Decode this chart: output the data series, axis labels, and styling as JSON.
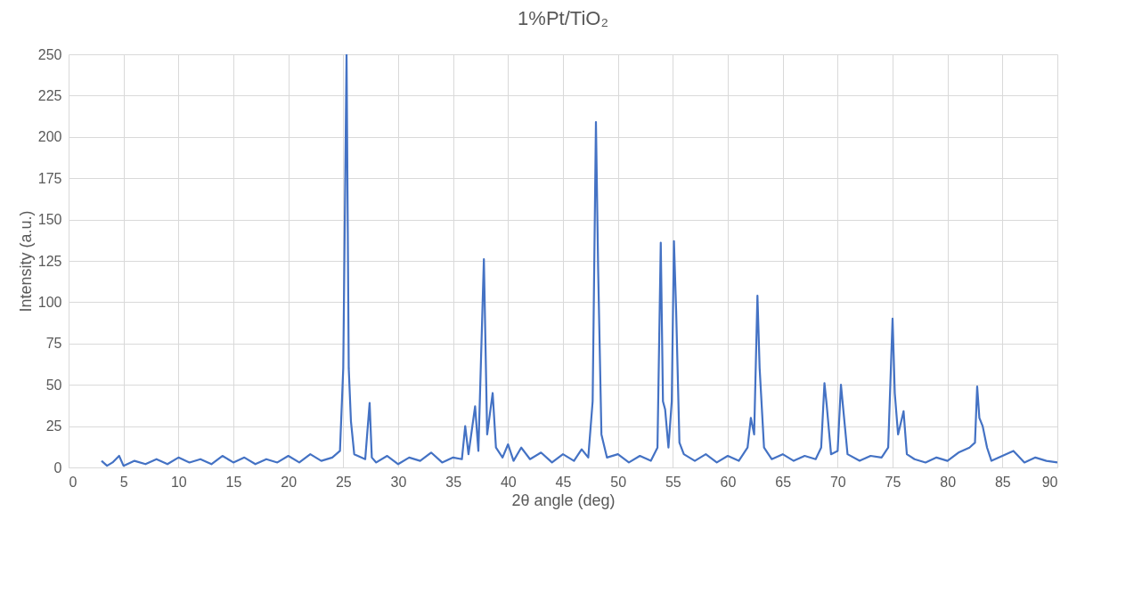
{
  "chart_data": {
    "type": "line",
    "title": "1%Pt/TiO₂",
    "xlabel": "2θ angle (deg)",
    "ylabel": "Intensity (a.u.)",
    "x": [
      3,
      3.5,
      4,
      4.6,
      5,
      6,
      7,
      8,
      9,
      10,
      11,
      12,
      13,
      14,
      15,
      16,
      17,
      18,
      19,
      20,
      21,
      22,
      23,
      24,
      24.7,
      25.0,
      25.3,
      25.5,
      25.7,
      26,
      27,
      27.4,
      27.6,
      28,
      29,
      30,
      31,
      32,
      33,
      34,
      35,
      35.8,
      36.1,
      36.4,
      37.0,
      37.3,
      37.8,
      38.1,
      38.6,
      38.9,
      39.5,
      40,
      40.5,
      41.2,
      42,
      43,
      44,
      45,
      46,
      46.7,
      47.3,
      47.7,
      48.0,
      48.2,
      48.5,
      49,
      50,
      51,
      52,
      53,
      53.6,
      53.9,
      54.1,
      54.3,
      54.6,
      54.9,
      55.1,
      55.3,
      55.6,
      56,
      57,
      58,
      59,
      60,
      61,
      61.8,
      62.1,
      62.4,
      62.7,
      62.9,
      63.3,
      64,
      65,
      66,
      67,
      68,
      68.5,
      68.8,
      69.0,
      69.4,
      70.0,
      70.3,
      70.5,
      70.9,
      72,
      73,
      74,
      74.6,
      75.0,
      75.2,
      75.5,
      76.0,
      76.3,
      77,
      78,
      79,
      80,
      81,
      82,
      82.5,
      82.7,
      82.9,
      83.2,
      83.6,
      84,
      85,
      86,
      87,
      88,
      89,
      90
    ],
    "values": [
      4,
      1,
      3,
      7,
      1,
      4,
      2,
      5,
      2,
      6,
      3,
      5,
      2,
      7,
      3,
      6,
      2,
      5,
      3,
      7,
      3,
      8,
      4,
      6,
      10,
      60,
      250,
      60,
      28,
      8,
      5,
      39,
      6,
      3,
      7,
      2,
      6,
      4,
      9,
      3,
      6,
      5,
      25,
      8,
      37,
      10,
      126,
      20,
      45,
      12,
      6,
      14,
      4,
      12,
      5,
      9,
      3,
      8,
      4,
      11,
      6,
      40,
      209,
      120,
      20,
      6,
      8,
      3,
      7,
      4,
      12,
      136,
      40,
      35,
      12,
      40,
      137,
      95,
      15,
      8,
      4,
      8,
      3,
      7,
      4,
      12,
      30,
      20,
      104,
      60,
      12,
      5,
      8,
      4,
      7,
      5,
      12,
      51,
      38,
      8,
      10,
      50,
      36,
      8,
      4,
      7,
      6,
      12,
      90,
      45,
      20,
      34,
      8,
      5,
      3,
      6,
      4,
      9,
      12,
      15,
      49,
      30,
      25,
      12,
      4,
      7,
      10,
      3,
      6,
      4,
      3
    ],
    "color": "#4472c4",
    "xlim": [
      0,
      90
    ],
    "xticks": [
      0,
      5,
      10,
      15,
      20,
      25,
      30,
      35,
      40,
      45,
      50,
      55,
      60,
      65,
      70,
      75,
      80,
      85,
      90
    ],
    "ylim": [
      0,
      250
    ],
    "yticks": [
      0,
      25,
      50,
      75,
      100,
      125,
      150,
      175,
      200,
      225,
      250
    ],
    "grid": true
  }
}
